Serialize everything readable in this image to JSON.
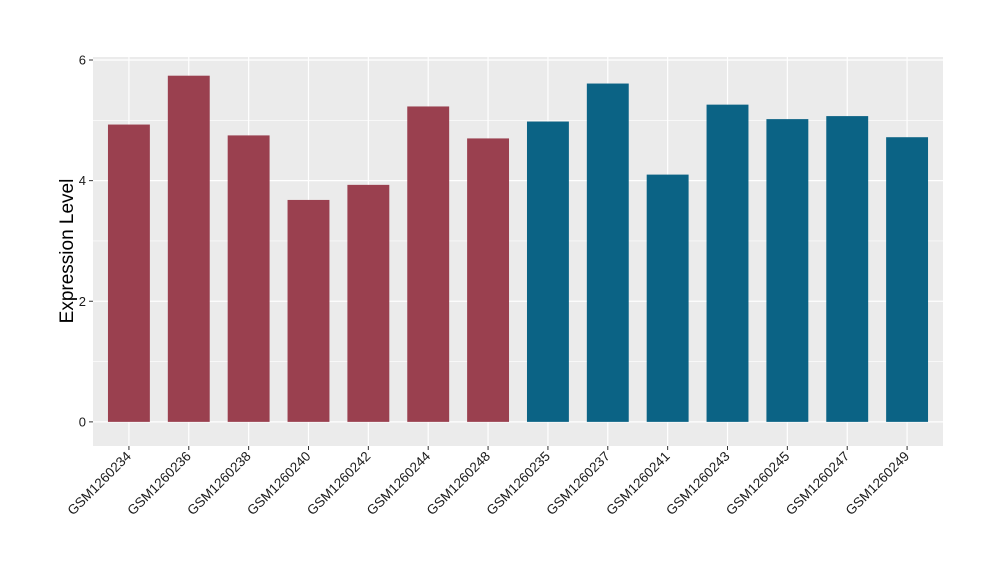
{
  "chart_data": {
    "type": "bar",
    "title": "",
    "xlabel": "",
    "ylabel": "Expression Level",
    "ylim": [
      -0.4,
      6.05
    ],
    "yticks": [
      0,
      2,
      4,
      6
    ],
    "grid": true,
    "legend": "none",
    "panel_background": "#EBEBEB",
    "grid_color": "#FFFFFF",
    "categories": [
      "GSM1260234",
      "GSM1260236",
      "GSM1260238",
      "GSM1260240",
      "GSM1260242",
      "GSM1260244",
      "GSM1260248",
      "GSM1260235",
      "GSM1260237",
      "GSM1260241",
      "GSM1260243",
      "GSM1260245",
      "GSM1260247",
      "GSM1260249"
    ],
    "values": [
      4.93,
      5.74,
      4.75,
      3.68,
      3.93,
      5.23,
      4.7,
      4.98,
      5.61,
      4.1,
      5.26,
      5.02,
      5.07,
      4.72
    ],
    "colors": [
      "#9A404F",
      "#9A404F",
      "#9A404F",
      "#9A404F",
      "#9A404F",
      "#9A404F",
      "#9A404F",
      "#0B6385",
      "#0B6385",
      "#0B6385",
      "#0B6385",
      "#0B6385",
      "#0B6385",
      "#0B6385"
    ]
  }
}
